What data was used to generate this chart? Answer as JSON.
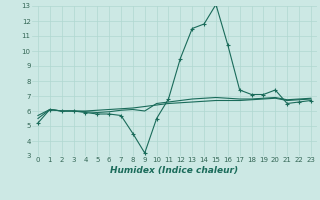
{
  "title": "",
  "xlabel": "Humidex (Indice chaleur)",
  "x": [
    0,
    1,
    2,
    3,
    4,
    5,
    6,
    7,
    8,
    9,
    10,
    11,
    12,
    13,
    14,
    15,
    16,
    17,
    18,
    19,
    20,
    21,
    22,
    23
  ],
  "line1": [
    5.2,
    6.1,
    6.0,
    6.0,
    5.9,
    5.8,
    5.8,
    5.7,
    4.5,
    3.2,
    5.5,
    6.8,
    9.5,
    11.5,
    11.8,
    13.1,
    10.4,
    7.4,
    7.1,
    7.1,
    7.4,
    6.5,
    6.6,
    6.7
  ],
  "line2": [
    5.5,
    6.1,
    6.0,
    6.0,
    5.95,
    5.9,
    5.95,
    6.05,
    6.1,
    6.0,
    6.5,
    6.6,
    6.7,
    6.8,
    6.85,
    6.9,
    6.85,
    6.8,
    6.8,
    6.85,
    6.9,
    6.75,
    6.8,
    6.85
  ],
  "line3": [
    5.7,
    6.1,
    6.0,
    6.0,
    6.0,
    6.05,
    6.1,
    6.15,
    6.2,
    6.3,
    6.4,
    6.5,
    6.55,
    6.6,
    6.65,
    6.7,
    6.7,
    6.7,
    6.75,
    6.8,
    6.85,
    6.7,
    6.75,
    6.8
  ],
  "line_color": "#1a6b5a",
  "bg_color": "#cce8e4",
  "grid_color": "#b0d8d0",
  "axis_color": "#336655",
  "ylim": [
    3,
    13
  ],
  "xlim": [
    -0.5,
    23.5
  ],
  "yticks": [
    3,
    4,
    5,
    6,
    7,
    8,
    9,
    10,
    11,
    12,
    13
  ],
  "xticks": [
    0,
    1,
    2,
    3,
    4,
    5,
    6,
    7,
    8,
    9,
    10,
    11,
    12,
    13,
    14,
    15,
    16,
    17,
    18,
    19,
    20,
    21,
    22,
    23
  ],
  "tick_fontsize": 5.0,
  "xlabel_fontsize": 6.5
}
